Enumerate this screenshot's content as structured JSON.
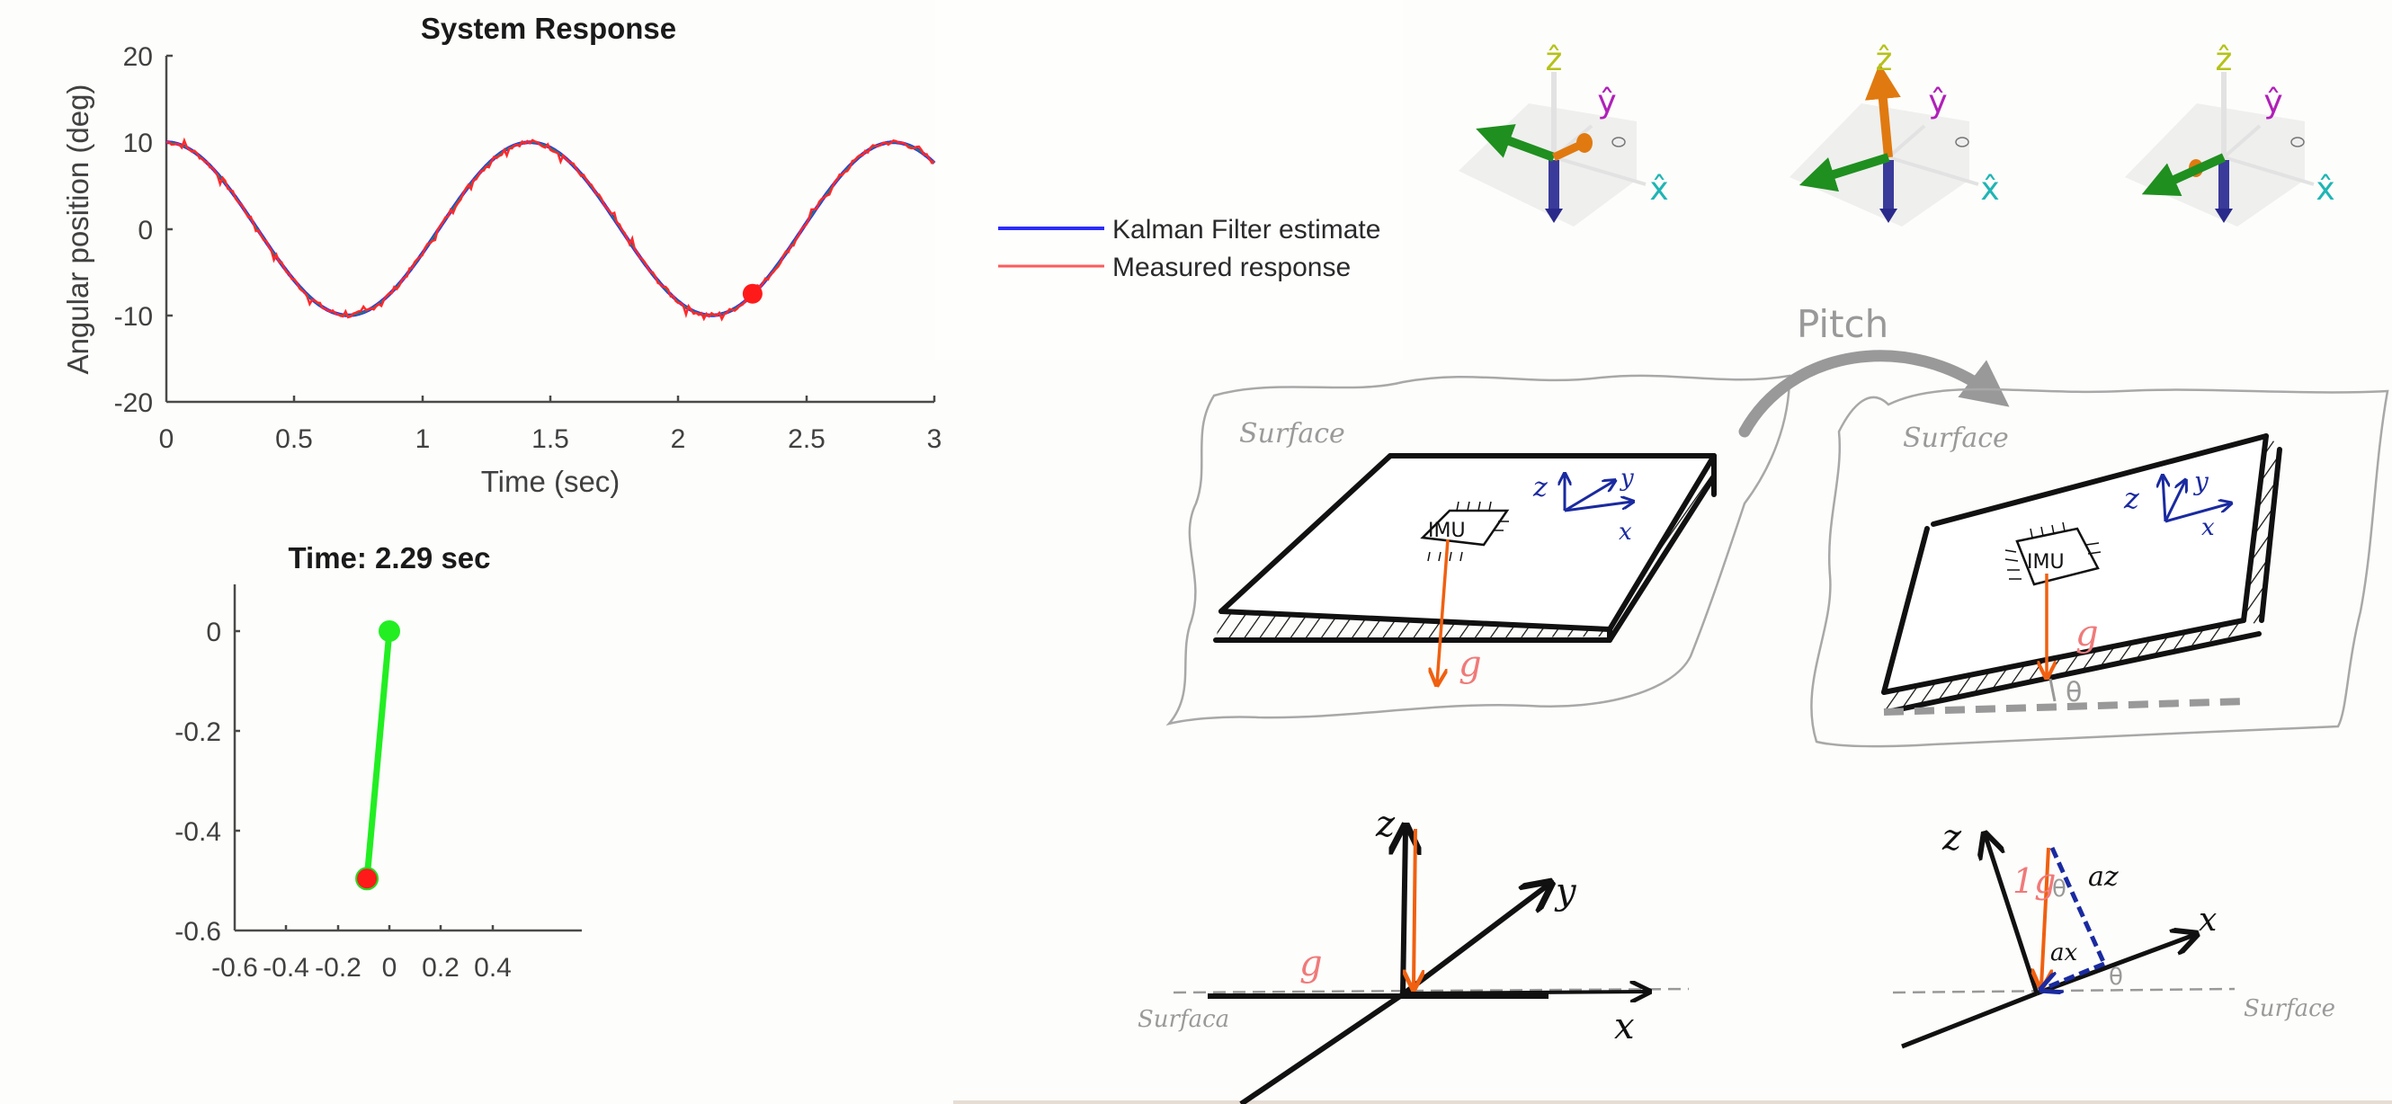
{
  "chart_data": [
    {
      "type": "line",
      "title": "System Response",
      "xlabel": "Time (sec)",
      "ylabel": "Angular position (deg)",
      "xlim": [
        0,
        3
      ],
      "ylim": [
        -20,
        20
      ],
      "xticks": [
        "0",
        "0.5",
        "1",
        "1.5",
        "2",
        "2.5",
        "3"
      ],
      "yticks": [
        "20",
        "10",
        "0",
        "-10",
        "-20"
      ],
      "grid": false,
      "legend_position": "outside-right",
      "x": [
        0,
        0.1,
        0.2,
        0.3,
        0.4,
        0.5,
        0.6,
        0.7,
        0.8,
        0.9,
        1.0,
        1.1,
        1.2,
        1.3,
        1.4,
        1.5,
        1.6,
        1.7,
        1.8,
        1.9,
        2.0,
        2.1,
        2.2,
        2.3,
        2.4,
        2.5,
        2.6,
        2.7,
        2.8,
        2.9,
        3.0
      ],
      "series": [
        {
          "name": "Kalman Filter estimate",
          "color": "#2b2bff",
          "values": [
            10,
            9.04,
            6.33,
            2.41,
            -1.98,
            -5.98,
            -8.84,
            -9.99,
            -9.22,
            -6.67,
            -2.84,
            1.53,
            5.63,
            8.62,
            9.96,
            9.38,
            7.0,
            3.26,
            -1.09,
            -5.27,
            -8.38,
            -9.89,
            -9.5,
            -7.31,
            -3.69,
            0.65,
            4.9,
            8.12,
            9.81,
            9.6,
            7.61
          ]
        },
        {
          "name": "Measured response",
          "color": "#ff2a2a",
          "noise_amplitude_deg": 0.6,
          "values": [
            10.4,
            9.2,
            6.6,
            2.2,
            -1.7,
            -6.3,
            -8.5,
            -10.3,
            -9.0,
            -6.9,
            -2.6,
            1.8,
            5.4,
            8.9,
            10.2,
            9.1,
            7.3,
            3.0,
            -1.3,
            -5.0,
            -8.6,
            -10.2,
            -9.3,
            -7.6,
            -3.4,
            0.9,
            4.6,
            8.4,
            10.3,
            9.8,
            7.8
          ]
        }
      ],
      "marker": {
        "t": 2.29,
        "value": -7.5,
        "color": "#ff1a1a"
      },
      "model": {
        "amplitude_deg": 10,
        "period_sec": 1.42
      }
    },
    {
      "type": "scatter",
      "title": "Time: 2.29 sec",
      "xlim": [
        -0.6,
        0.75
      ],
      "ylim": [
        -0.6,
        0.1
      ],
      "xticks": [
        "-0.6",
        "-0.4",
        "-0.2",
        "0",
        "0.2",
        "0.4"
      ],
      "yticks": [
        "0",
        "-0.2",
        "-0.4",
        "-0.6"
      ],
      "grid": false,
      "points": [
        {
          "name": "pivot",
          "x": 0,
          "y": 0,
          "color": "#22ee22"
        },
        {
          "name": "bob",
          "x": -0.087,
          "y": -0.496,
          "color": "#ff1a1a"
        }
      ],
      "link": {
        "from": "pivot",
        "to": "bob",
        "color": "#22ee22"
      }
    }
  ],
  "plot1": {
    "title": "System Response",
    "xlabel": "Time (sec)",
    "ylabel": "Angular position (deg)",
    "xticks": [
      "0",
      "0.5",
      "1",
      "1.5",
      "2",
      "2.5",
      "3"
    ],
    "yticks": [
      "20",
      "10",
      "0",
      "-10",
      "-20"
    ]
  },
  "legend": {
    "items": [
      {
        "label": "Kalman Filter estimate",
        "color": "#2b2bff"
      },
      {
        "label": "Measured response",
        "color": "#ff4d4d"
      }
    ]
  },
  "plot2": {
    "title": "Time: 2.29 sec",
    "xticks": [
      "-0.6",
      "-0.4",
      "-0.2",
      "0",
      "0.2",
      "0.4"
    ],
    "yticks": [
      "0",
      "-0.2",
      "-0.4",
      "-0.6"
    ]
  },
  "axes3d": {
    "labels": {
      "z": "ẑ",
      "y": "ŷ",
      "x": "x̂"
    },
    "colors": {
      "z": "#b5c21a",
      "y": "#b020b8",
      "x": "#1fb5b5",
      "down": "#3a3a9a",
      "green": "#1f8f1f",
      "orange": "#e07a10"
    }
  },
  "sketches": {
    "surface_label": "Surface",
    "surface_label_alt": "Surfaca",
    "pitch_label": "Pitch",
    "imu_label": "IMU",
    "g_label": "g",
    "one_g_label": "1g",
    "theta_label": "θ",
    "axis_x": "x",
    "axis_y": "y",
    "axis_z": "z",
    "a_z": "az",
    "a_x": "ax",
    "colors": {
      "blue": "#1a2aa0",
      "orange": "#f06010",
      "pink": "#f07a7a",
      "gray": "#999999"
    }
  }
}
